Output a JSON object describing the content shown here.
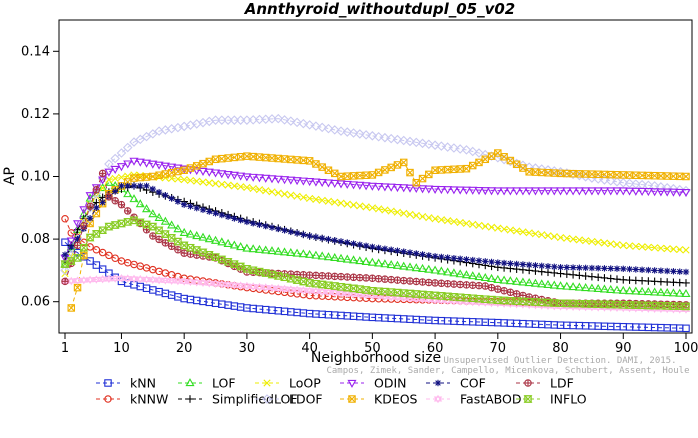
{
  "chart_data": {
    "type": "line",
    "title": "Annthyroid_withoutdupl_05_v02",
    "xlabel": "Neighborhood size",
    "ylabel": "AP",
    "xlim": [
      1,
      100
    ],
    "ylim": [
      0.05,
      0.15
    ],
    "x_ticks": [
      1,
      10,
      20,
      30,
      40,
      50,
      60,
      70,
      80,
      90,
      100
    ],
    "y_ticks": [
      0.06,
      0.08,
      0.1,
      0.12,
      0.14
    ],
    "y_tick_labels": [
      "0.06",
      "0.08",
      "0.10",
      "0.12",
      "0.14"
    ],
    "grid": false,
    "legend_position": "bottom",
    "credit_lines": [
      "Campos, Zimek, Sander, Campello, Micenkova, Schubert, Assent, Houle",
      "Unsupervised Outlier Detection. DAMI, 2015."
    ],
    "series": [
      {
        "name": "kNN",
        "color": "#1f2fd6",
        "marker": "square",
        "points": [
          [
            1,
            0.079
          ],
          [
            2,
            0.077
          ],
          [
            5,
            0.073
          ],
          [
            10,
            0.0665
          ],
          [
            20,
            0.061
          ],
          [
            30,
            0.058
          ],
          [
            40,
            0.0562
          ],
          [
            50,
            0.055
          ],
          [
            60,
            0.054
          ],
          [
            70,
            0.0533
          ],
          [
            80,
            0.0525
          ],
          [
            90,
            0.052
          ],
          [
            100,
            0.0515
          ]
        ]
      },
      {
        "name": "kNNW",
        "color": "#e03020",
        "marker": "circle",
        "points": [
          [
            1,
            0.0865
          ],
          [
            2,
            0.082
          ],
          [
            5,
            0.0775
          ],
          [
            10,
            0.073
          ],
          [
            20,
            0.0675
          ],
          [
            30,
            0.0645
          ],
          [
            40,
            0.062
          ],
          [
            50,
            0.061
          ],
          [
            60,
            0.0605
          ],
          [
            70,
            0.06
          ],
          [
            80,
            0.0595
          ],
          [
            90,
            0.059
          ],
          [
            100,
            0.0585
          ]
        ]
      },
      {
        "name": "LOF",
        "color": "#33dd22",
        "marker": "triangle-up",
        "points": [
          [
            1,
            0.072
          ],
          [
            3,
            0.083
          ],
          [
            5,
            0.093
          ],
          [
            8,
            0.098
          ],
          [
            10,
            0.096
          ],
          [
            15,
            0.088
          ],
          [
            20,
            0.082
          ],
          [
            30,
            0.077
          ],
          [
            40,
            0.075
          ],
          [
            50,
            0.0725
          ],
          [
            60,
            0.07
          ],
          [
            70,
            0.067
          ],
          [
            80,
            0.065
          ],
          [
            90,
            0.0635
          ],
          [
            100,
            0.0625
          ]
        ]
      },
      {
        "name": "SimplifiedLOF",
        "color": "#000000",
        "marker": "plus",
        "points": [
          [
            1,
            0.073
          ],
          [
            3,
            0.083
          ],
          [
            5,
            0.09
          ],
          [
            8,
            0.095
          ],
          [
            12,
            0.097
          ],
          [
            15,
            0.095
          ],
          [
            20,
            0.092
          ],
          [
            30,
            0.086
          ],
          [
            40,
            0.081
          ],
          [
            50,
            0.077
          ],
          [
            60,
            0.074
          ],
          [
            70,
            0.071
          ],
          [
            80,
            0.069
          ],
          [
            90,
            0.067
          ],
          [
            100,
            0.066
          ]
        ]
      },
      {
        "name": "LoOP",
        "color": "#eeee00",
        "marker": "x",
        "points": [
          [
            1,
            0.069
          ],
          [
            3,
            0.08
          ],
          [
            5,
            0.091
          ],
          [
            8,
            0.099
          ],
          [
            12,
            0.1005
          ],
          [
            20,
            0.099
          ],
          [
            30,
            0.0965
          ],
          [
            40,
            0.093
          ],
          [
            50,
            0.09
          ],
          [
            60,
            0.0865
          ],
          [
            70,
            0.0835
          ],
          [
            80,
            0.0805
          ],
          [
            90,
            0.078
          ],
          [
            100,
            0.0765
          ]
        ]
      },
      {
        "name": "LDOF",
        "color": "#c8c8f0",
        "marker": "diamond",
        "points": [
          [
            1,
            0.07
          ],
          [
            3,
            0.08
          ],
          [
            5,
            0.09
          ],
          [
            8,
            0.104
          ],
          [
            12,
            0.111
          ],
          [
            16,
            0.1145
          ],
          [
            20,
            0.116
          ],
          [
            25,
            0.118
          ],
          [
            30,
            0.118
          ],
          [
            35,
            0.1185
          ],
          [
            40,
            0.1165
          ],
          [
            45,
            0.1145
          ],
          [
            50,
            0.113
          ],
          [
            55,
            0.1115
          ],
          [
            60,
            0.11
          ],
          [
            65,
            0.1085
          ],
          [
            70,
            0.106
          ],
          [
            75,
            0.103
          ],
          [
            80,
            0.1015
          ],
          [
            85,
            0.0995
          ],
          [
            90,
            0.098
          ],
          [
            95,
            0.097
          ],
          [
            100,
            0.0955
          ]
        ]
      },
      {
        "name": "ODIN",
        "color": "#9922ee",
        "marker": "triangle-down",
        "points": [
          [
            1,
            0.074
          ],
          [
            3,
            0.085
          ],
          [
            5,
            0.094
          ],
          [
            8,
            0.1015
          ],
          [
            12,
            0.105
          ],
          [
            20,
            0.1025
          ],
          [
            30,
            0.1
          ],
          [
            40,
            0.0985
          ],
          [
            50,
            0.097
          ],
          [
            60,
            0.096
          ],
          [
            70,
            0.0955
          ],
          [
            80,
            0.0955
          ],
          [
            90,
            0.0955
          ],
          [
            100,
            0.095
          ]
        ]
      },
      {
        "name": "KDEOS",
        "color": "#f0b000",
        "marker": "boxtimes",
        "points": [
          [
            2,
            0.058
          ],
          [
            3,
            0.0645
          ],
          [
            5,
            0.085
          ],
          [
            8,
            0.0945
          ],
          [
            12,
            0.0995
          ],
          [
            15,
            0.1
          ],
          [
            20,
            0.102
          ],
          [
            25,
            0.1055
          ],
          [
            30,
            0.1065
          ],
          [
            40,
            0.105
          ],
          [
            45,
            0.1
          ],
          [
            50,
            0.1005
          ],
          [
            55,
            0.1045
          ],
          [
            57,
            0.098
          ],
          [
            60,
            0.102
          ],
          [
            65,
            0.1025
          ],
          [
            70,
            0.1075
          ],
          [
            75,
            0.1015
          ],
          [
            80,
            0.101
          ],
          [
            90,
            0.1005
          ],
          [
            100,
            0.1
          ]
        ]
      },
      {
        "name": "COF",
        "color": "#101080",
        "marker": "asterisk",
        "points": [
          [
            1,
            0.075
          ],
          [
            3,
            0.08
          ],
          [
            6,
            0.09
          ],
          [
            10,
            0.097
          ],
          [
            14,
            0.097
          ],
          [
            20,
            0.091
          ],
          [
            30,
            0.0855
          ],
          [
            40,
            0.081
          ],
          [
            50,
            0.0775
          ],
          [
            60,
            0.0745
          ],
          [
            70,
            0.0725
          ],
          [
            80,
            0.071
          ],
          [
            90,
            0.0705
          ],
          [
            100,
            0.0695
          ]
        ]
      },
      {
        "name": "FastABOD",
        "color": "#ffbbee",
        "marker": "triangle-diamond",
        "points": [
          [
            1,
            0.0665
          ],
          [
            5,
            0.067
          ],
          [
            10,
            0.0675
          ],
          [
            20,
            0.0665
          ],
          [
            30,
            0.065
          ],
          [
            40,
            0.0635
          ],
          [
            50,
            0.062
          ],
          [
            60,
            0.0605
          ],
          [
            70,
            0.0595
          ],
          [
            80,
            0.0585
          ],
          [
            90,
            0.058
          ],
          [
            100,
            0.0575
          ]
        ]
      },
      {
        "name": "LDF",
        "color": "#aa3344",
        "marker": "circle-plus",
        "points": [
          [
            1,
            0.0665
          ],
          [
            3,
            0.078
          ],
          [
            5,
            0.0905
          ],
          [
            7,
            0.101
          ],
          [
            8,
            0.0935
          ],
          [
            10,
            0.091
          ],
          [
            12,
            0.087
          ],
          [
            15,
            0.081
          ],
          [
            20,
            0.0755
          ],
          [
            25,
            0.074
          ],
          [
            30,
            0.0695
          ],
          [
            40,
            0.0685
          ],
          [
            50,
            0.0675
          ],
          [
            60,
            0.066
          ],
          [
            68,
            0.065
          ],
          [
            75,
            0.0615
          ],
          [
            80,
            0.0595
          ],
          [
            90,
            0.0595
          ],
          [
            100,
            0.059
          ]
        ]
      },
      {
        "name": "INFLO",
        "color": "#88cc22",
        "marker": "hourglass",
        "points": [
          [
            1,
            0.072
          ],
          [
            3,
            0.074
          ],
          [
            5,
            0.0805
          ],
          [
            8,
            0.084
          ],
          [
            12,
            0.086
          ],
          [
            15,
            0.084
          ],
          [
            20,
            0.078
          ],
          [
            30,
            0.0705
          ],
          [
            40,
            0.066
          ],
          [
            50,
            0.0635
          ],
          [
            60,
            0.062
          ],
          [
            70,
            0.0605
          ],
          [
            80,
            0.0595
          ],
          [
            90,
            0.059
          ],
          [
            100,
            0.0585
          ]
        ]
      }
    ]
  }
}
